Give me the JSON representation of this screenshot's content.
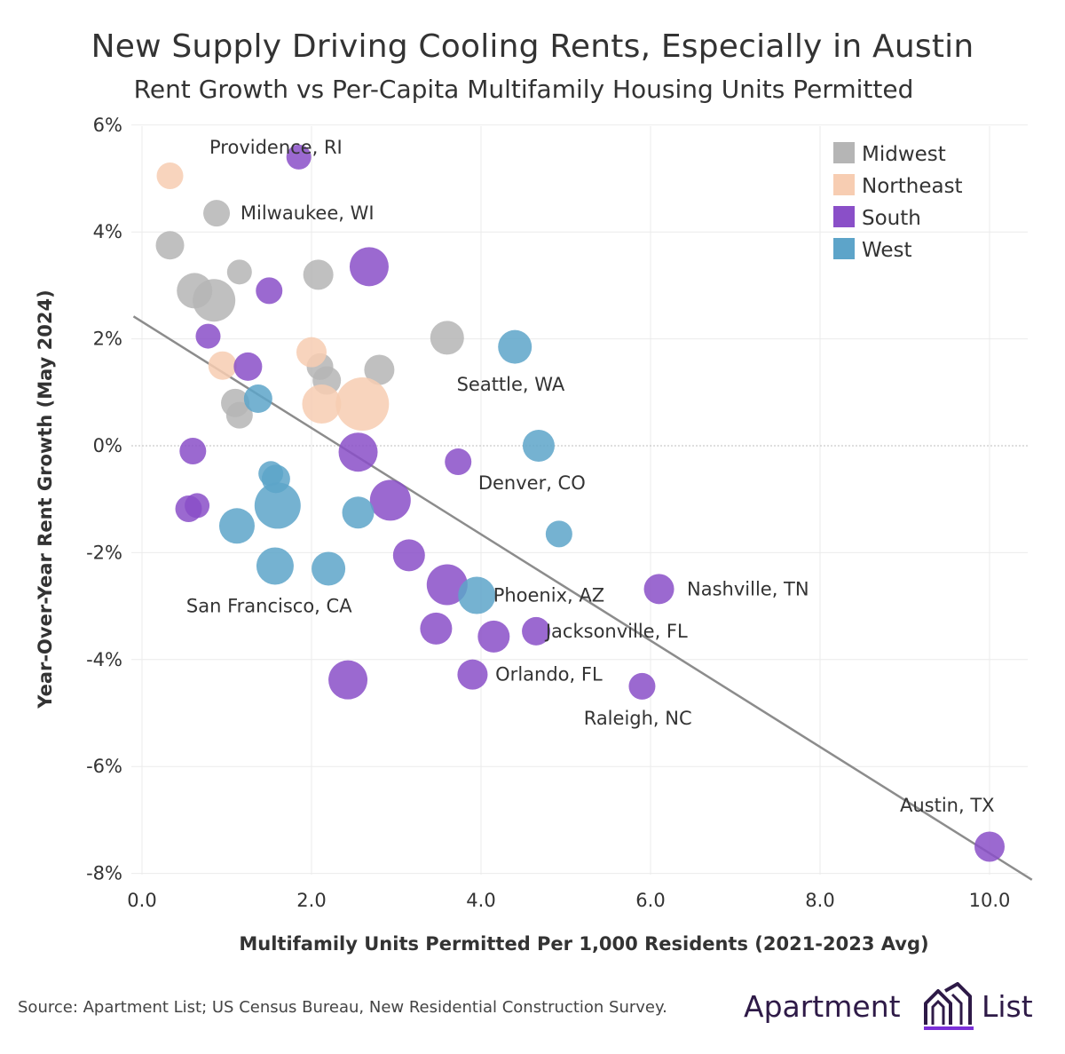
{
  "header": {
    "title": "New Supply Driving Cooling Rents, Especially in Austin",
    "subtitle": "Rent Growth vs Per-Capita Multifamily Housing Units Permitted"
  },
  "footer": {
    "source": "Source: Apartment List; US Census Bureau, New Residential Construction Survey.",
    "logo_left": "Apartment",
    "logo_right": "List"
  },
  "chart_data": {
    "type": "scatter",
    "title": "New Supply Driving Cooling Rents, Especially in Austin",
    "subtitle": "Rent Growth vs Per-Capita Multifamily Housing Units Permitted",
    "xlabel": "Multifamily Units Permitted Per 1,000 Residents (2021-2023 Avg)",
    "ylabel": "Year-Over-Year Rent Growth (May 2024)",
    "xlim": [
      -0.1,
      10.5
    ],
    "ylim": [
      -8.1,
      6.2
    ],
    "x_ticks": [
      0,
      2,
      4,
      6,
      8,
      10
    ],
    "x_tick_labels": [
      "0.0",
      "2.0",
      "4.0",
      "6.0",
      "8.0",
      "10.0"
    ],
    "y_ticks": [
      6,
      4,
      2,
      0,
      -2,
      -4,
      -6,
      -8
    ],
    "y_tick_labels": [
      "6%",
      "4%",
      "2%",
      "0%",
      "-2%",
      "-4%",
      "-6%",
      "-8%"
    ],
    "grid": true,
    "legend_position": "top-right",
    "legend": [
      {
        "name": "Midwest",
        "color": "#b5b5b5"
      },
      {
        "name": "Northeast",
        "color": "#f7cdb2"
      },
      {
        "name": "South",
        "color": "#8a4fc8"
      },
      {
        "name": "West",
        "color": "#5da4c9"
      }
    ],
    "series": [
      {
        "name": "Midwest",
        "color": "#b5b5b5",
        "points": [
          {
            "x": 0.88,
            "y": 4.35,
            "size": 15
          },
          {
            "x": 0.33,
            "y": 3.75,
            "size": 16
          },
          {
            "x": 1.15,
            "y": 3.25,
            "size": 14
          },
          {
            "x": 0.62,
            "y": 2.9,
            "size": 20
          },
          {
            "x": 0.85,
            "y": 2.72,
            "size": 24
          },
          {
            "x": 2.08,
            "y": 3.2,
            "size": 17
          },
          {
            "x": 3.6,
            "y": 2.02,
            "size": 19
          },
          {
            "x": 2.8,
            "y": 1.42,
            "size": 17
          },
          {
            "x": 2.1,
            "y": 1.48,
            "size": 15
          },
          {
            "x": 2.18,
            "y": 1.22,
            "size": 16
          },
          {
            "x": 1.1,
            "y": 0.8,
            "size": 16
          },
          {
            "x": 1.15,
            "y": 0.57,
            "size": 15
          }
        ]
      },
      {
        "name": "Northeast",
        "color": "#f7cdb2",
        "label": "Providence, RI",
        "points": [
          {
            "x": 0.33,
            "y": 5.05,
            "size": 15
          },
          {
            "x": 2.0,
            "y": 1.75,
            "size": 17
          },
          {
            "x": 0.95,
            "y": 1.5,
            "size": 16
          },
          {
            "x": 2.12,
            "y": 0.78,
            "size": 22
          },
          {
            "x": 2.6,
            "y": 0.78,
            "size": 30
          }
        ]
      },
      {
        "name": "South",
        "color": "#8a4fc8",
        "points": [
          {
            "x": 1.85,
            "y": 5.4,
            "size": 14
          },
          {
            "x": 2.68,
            "y": 3.35,
            "size": 22
          },
          {
            "x": 1.5,
            "y": 2.9,
            "size": 15
          },
          {
            "x": 0.78,
            "y": 2.05,
            "size": 14
          },
          {
            "x": 1.25,
            "y": 1.48,
            "size": 16
          },
          {
            "x": 0.6,
            "y": -0.1,
            "size": 15
          },
          {
            "x": 2.55,
            "y": -0.12,
            "size": 22
          },
          {
            "x": 3.73,
            "y": -0.3,
            "size": 15
          },
          {
            "x": 2.93,
            "y": -1.02,
            "size": 23
          },
          {
            "x": 0.55,
            "y": -1.18,
            "size": 15
          },
          {
            "x": 0.65,
            "y": -1.12,
            "size": 14
          },
          {
            "x": 3.15,
            "y": -2.05,
            "size": 18
          },
          {
            "x": 3.6,
            "y": -2.6,
            "size": 23
          },
          {
            "x": 3.47,
            "y": -3.42,
            "size": 18
          },
          {
            "x": 4.15,
            "y": -3.57,
            "size": 18
          },
          {
            "x": 4.65,
            "y": -3.47,
            "size": 16
          },
          {
            "x": 6.1,
            "y": -2.68,
            "size": 17
          },
          {
            "x": 3.9,
            "y": -4.28,
            "size": 17
          },
          {
            "x": 2.43,
            "y": -4.38,
            "size": 22
          },
          {
            "x": 5.9,
            "y": -4.5,
            "size": 15
          },
          {
            "x": 10.0,
            "y": -7.5,
            "size": 17
          }
        ]
      },
      {
        "name": "West",
        "color": "#5da4c9",
        "points": [
          {
            "x": 4.4,
            "y": 1.85,
            "size": 19
          },
          {
            "x": 1.37,
            "y": 0.88,
            "size": 16
          },
          {
            "x": 4.68,
            "y": 0.0,
            "size": 18
          },
          {
            "x": 1.52,
            "y": -0.52,
            "size": 14
          },
          {
            "x": 1.58,
            "y": -0.62,
            "size": 16
          },
          {
            "x": 1.6,
            "y": -1.12,
            "size": 26
          },
          {
            "x": 2.55,
            "y": -1.25,
            "size": 18
          },
          {
            "x": 1.12,
            "y": -1.5,
            "size": 20
          },
          {
            "x": 4.92,
            "y": -1.65,
            "size": 15
          },
          {
            "x": 1.57,
            "y": -2.25,
            "size": 21
          },
          {
            "x": 2.2,
            "y": -2.3,
            "size": 19
          },
          {
            "x": 3.95,
            "y": -2.8,
            "size": 21
          }
        ]
      }
    ],
    "annotations": [
      {
        "text": "Providence, RI",
        "x": 1.58,
        "y": 5.58
      },
      {
        "text": "Milwaukee, WI",
        "x": 1.95,
        "y": 4.35
      },
      {
        "text": "Seattle, WA",
        "x": 4.35,
        "y": 1.15
      },
      {
        "text": "Denver, CO",
        "x": 4.6,
        "y": -0.7
      },
      {
        "text": "Nashville, TN",
        "x": 7.15,
        "y": -2.68
      },
      {
        "text": "Phoenix, AZ",
        "x": 4.8,
        "y": -2.8
      },
      {
        "text": "San Francisco, CA",
        "x": 1.5,
        "y": -3.0
      },
      {
        "text": "Jacksonville, FL",
        "x": 5.6,
        "y": -3.47
      },
      {
        "text": "Orlando, FL",
        "x": 4.8,
        "y": -4.28
      },
      {
        "text": "Raleigh, NC",
        "x": 5.85,
        "y": -5.1
      },
      {
        "text": "Austin, TX",
        "x": 9.5,
        "y": -6.73
      }
    ],
    "trendline": {
      "x": [
        -0.1,
        10.5
      ],
      "y": [
        2.42,
        -8.12
      ],
      "color": "#8c8c8c"
    }
  }
}
